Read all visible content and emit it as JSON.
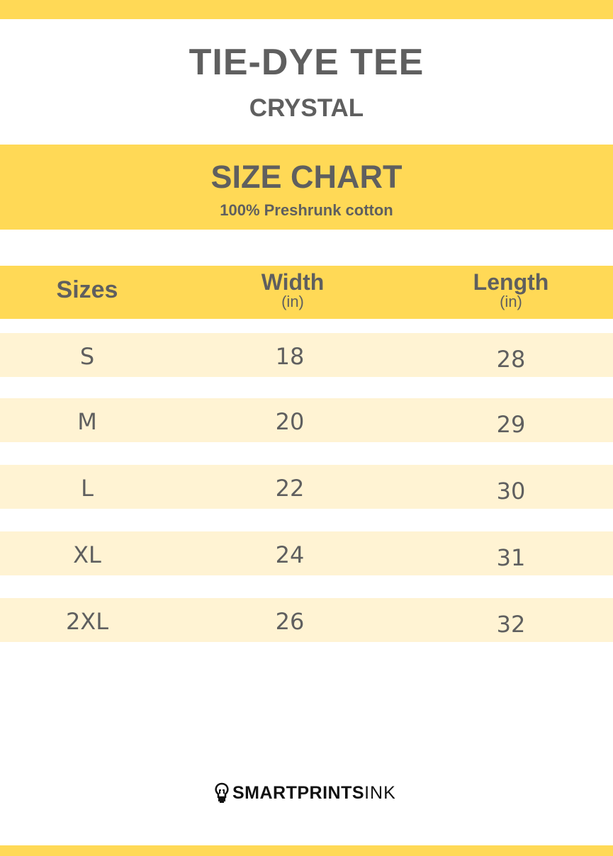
{
  "product": {
    "title": "TIE-DYE TEE",
    "subtitle": "CRYSTAL"
  },
  "band": {
    "title": "SIZE CHART",
    "subtitle": "100% Preshrunk cotton"
  },
  "table": {
    "headers": [
      {
        "label": "Sizes",
        "unit": ""
      },
      {
        "label": "Width",
        "unit": "(in)"
      },
      {
        "label": "Length",
        "unit": "(in)"
      }
    ],
    "rows": [
      {
        "size": "S",
        "width": "18",
        "length": "28"
      },
      {
        "size": "M",
        "width": "20",
        "length": "29"
      },
      {
        "size": "L",
        "width": "22",
        "length": "30"
      },
      {
        "size": "XL",
        "width": "24",
        "length": "31"
      },
      {
        "size": "2XL",
        "width": "26",
        "length": "32"
      }
    ]
  },
  "logo": {
    "bold": "SMARTPRINTS",
    "light": "INK",
    "icon": "lightbulb-icon"
  },
  "colors": {
    "accent": "#ffd956",
    "row": "#fff3d3",
    "text": "#5f5f5f"
  }
}
